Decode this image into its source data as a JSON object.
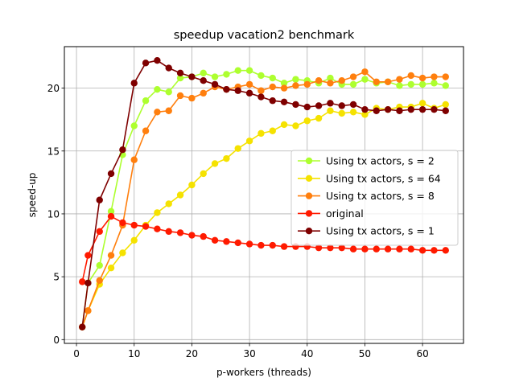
{
  "chart_data": {
    "type": "line",
    "title": "speedup vacation2 benchmark",
    "xlabel": "p-workers (threads)",
    "ylabel": "speed-up",
    "xlim": [
      -2.1,
      67.1
    ],
    "ylim": [
      -0.3,
      23.3
    ],
    "xticks": [
      0,
      10,
      20,
      30,
      40,
      50,
      60
    ],
    "yticks": [
      0,
      5,
      10,
      15,
      20
    ],
    "grid": true,
    "legend_position": "center-right",
    "x": [
      1,
      2,
      4,
      6,
      8,
      10,
      12,
      14,
      16,
      18,
      20,
      22,
      24,
      26,
      28,
      30,
      32,
      34,
      36,
      38,
      40,
      42,
      44,
      46,
      48,
      50,
      52,
      54,
      56,
      58,
      60,
      62,
      64
    ],
    "series": [
      {
        "name": "Using tx actors, s = 2",
        "color": "#adff2f",
        "values": [
          1.0,
          4.5,
          5.9,
          10.2,
          14.7,
          17.0,
          19.0,
          19.9,
          19.7,
          20.8,
          20.9,
          21.2,
          20.9,
          21.1,
          21.4,
          21.4,
          21.0,
          20.8,
          20.4,
          20.7,
          20.6,
          20.4,
          20.8,
          20.3,
          20.3,
          20.7,
          20.4,
          20.5,
          20.2,
          20.3,
          20.3,
          20.4,
          20.2
        ]
      },
      {
        "name": "Using tx actors, s = 64",
        "color": "#f5e200",
        "values": [
          1.0,
          2.3,
          4.4,
          5.7,
          6.9,
          7.9,
          9.1,
          10.1,
          10.8,
          11.5,
          12.3,
          13.2,
          14.0,
          14.4,
          15.2,
          15.8,
          16.4,
          16.6,
          17.1,
          17.0,
          17.4,
          17.6,
          18.2,
          18.0,
          18.1,
          17.9,
          18.4,
          18.3,
          18.5,
          18.5,
          18.8,
          18.4,
          18.7
        ]
      },
      {
        "name": "Using tx actors, s = 8",
        "color": "#ff7f0e",
        "values": [
          1.0,
          2.3,
          4.7,
          6.7,
          9.1,
          14.3,
          16.6,
          18.1,
          18.2,
          19.4,
          19.2,
          19.6,
          20.1,
          19.9,
          20.1,
          20.3,
          19.8,
          20.1,
          20.0,
          20.2,
          20.3,
          20.6,
          20.4,
          20.6,
          20.9,
          21.3,
          20.5,
          20.5,
          20.7,
          21.0,
          20.8,
          20.9,
          20.9
        ]
      },
      {
        "name": "original",
        "color": "#ff1a00",
        "values": [
          4.6,
          6.7,
          8.6,
          9.8,
          9.3,
          9.1,
          9.0,
          8.8,
          8.6,
          8.5,
          8.3,
          8.2,
          7.9,
          7.8,
          7.7,
          7.6,
          7.5,
          7.5,
          7.4,
          7.4,
          7.4,
          7.3,
          7.3,
          7.3,
          7.2,
          7.2,
          7.2,
          7.2,
          7.2,
          7.2,
          7.1,
          7.1,
          7.1
        ]
      },
      {
        "name": "Using tx actors, s = 1",
        "color": "#7f0000",
        "values": [
          1.0,
          4.5,
          11.1,
          13.2,
          15.1,
          20.4,
          22.0,
          22.2,
          21.6,
          21.2,
          20.9,
          20.6,
          20.3,
          19.9,
          19.8,
          19.6,
          19.3,
          19.0,
          18.9,
          18.7,
          18.5,
          18.6,
          18.8,
          18.6,
          18.7,
          18.3,
          18.2,
          18.3,
          18.2,
          18.3,
          18.3,
          18.3,
          18.2
        ]
      }
    ]
  }
}
